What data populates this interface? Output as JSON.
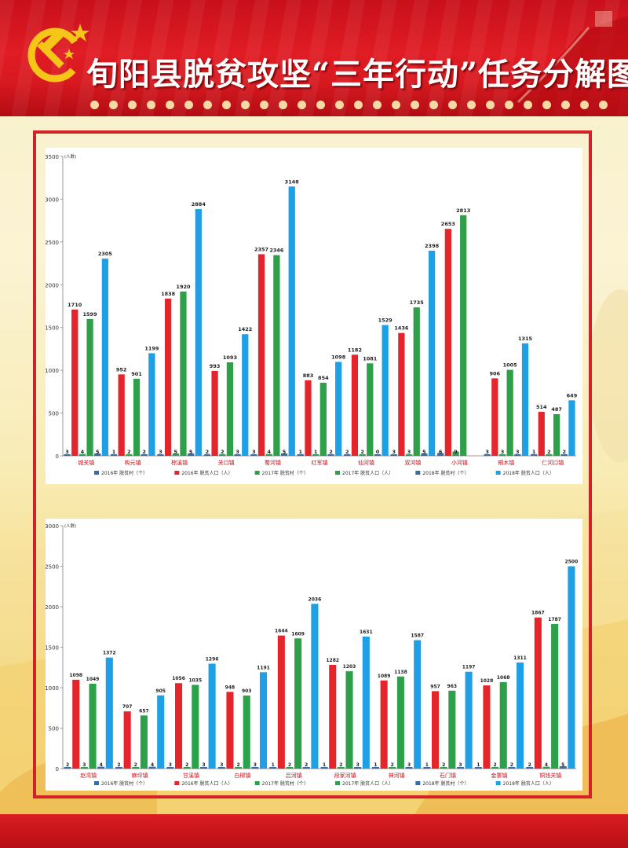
{
  "title": "旬阳县脱贫攻坚“三年行动”任务分解图",
  "colors": {
    "red_dark": "#c8101a",
    "frame": "#d42128",
    "s2016v": "#3a6aa8",
    "s2016p": "#e4262c",
    "s2017v": "#2fa04a",
    "s2017p": "#2fa04a",
    "s2018v": "#3a6aa8",
    "s2018p": "#1ea0e6"
  },
  "chart_data": [
    {
      "type": "bar",
      "ylabel": "(人数)",
      "ylim": [
        0,
        3500
      ],
      "yticks": [
        0,
        500,
        1000,
        1500,
        2000,
        2500,
        3000,
        3500
      ],
      "legend_position": "bottom",
      "categories": [
        "城关镇",
        "构元镇",
        "棕溪镇",
        "关口镇",
        "蜀河镇",
        "红军镇",
        "仙河镇",
        "双河镇",
        "小河镇",
        "桐木镇",
        "仁河口镇"
      ],
      "series": [
        {
          "name": "2016年 脱贫村（个）",
          "color": "#3a6aa8",
          "values": [
            3,
            1,
            3,
            2,
            3,
            1,
            2,
            3,
            6,
            3,
            1
          ]
        },
        {
          "name": "2016年 脱贫人口（人）",
          "color": "#e4262c",
          "values": [
            1710,
            952,
            1838,
            993,
            2357,
            883,
            1182,
            1436,
            2653,
            906,
            514
          ]
        },
        {
          "name": "2017年 脱贫村（个）",
          "color": "#2fa04a",
          "values": [
            4,
            2,
            5,
            2,
            4,
            1,
            2,
            3,
            9,
            3,
            2
          ]
        },
        {
          "name": "2017年 脱贫人口（人）",
          "color": "#2fa04a",
          "values": [
            1599,
            901,
            1920,
            1093,
            2346,
            854,
            1081,
            1735,
            2813,
            1005,
            487
          ]
        },
        {
          "name": "2018年 脱贫村（个）",
          "color": "#3a6aa8",
          "values": [
            5,
            2,
            5,
            3,
            5,
            2,
            0,
            5,
            null,
            3,
            2
          ]
        },
        {
          "name": "2018年 脱贫人口（人）",
          "color": "#1ea0e6",
          "values": [
            2305,
            1199,
            2884,
            1422,
            3148,
            1098,
            1529,
            2398,
            null,
            1315,
            649
          ]
        }
      ]
    },
    {
      "type": "bar",
      "ylabel": "(人数)",
      "ylim": [
        0,
        3000
      ],
      "yticks": [
        0,
        500,
        1000,
        1500,
        2000,
        2500,
        3000
      ],
      "legend_position": "bottom",
      "categories": [
        "赵湾镇",
        "麻坪镇",
        "甘溪镇",
        "白柳镇",
        "吕河镇",
        "段家河镇",
        "神河镇",
        "石门镇",
        "金寨镇",
        "铜钱关镇"
      ],
      "series": [
        {
          "name": "2016年 脱贫村（个）",
          "color": "#3a6aa8",
          "values": [
            2,
            2,
            3,
            3,
            1,
            1,
            1,
            1,
            1,
            2
          ]
        },
        {
          "name": "2016年 脱贫人口（人）",
          "color": "#e4262c",
          "values": [
            1098,
            707,
            1056,
            948,
            1644,
            1282,
            1089,
            957,
            1028,
            1867
          ]
        },
        {
          "name": "2017年 脱贫村（个）",
          "color": "#2fa04a",
          "values": [
            3,
            2,
            2,
            2,
            2,
            2,
            2,
            2,
            2,
            4
          ]
        },
        {
          "name": "2017年 脱贫人口（人）",
          "color": "#2fa04a",
          "values": [
            1049,
            657,
            1035,
            903,
            1609,
            1203,
            1138,
            963,
            1068,
            1787
          ]
        },
        {
          "name": "2018年 脱贫村（个）",
          "color": "#3a6aa8",
          "values": [
            4,
            4,
            3,
            3,
            2,
            3,
            3,
            3,
            2,
            5
          ]
        },
        {
          "name": "2018年 脱贫人口（人）",
          "color": "#1ea0e6",
          "values": [
            1372,
            905,
            1296,
            1191,
            2036,
            1631,
            1587,
            1197,
            1311,
            2500
          ]
        }
      ]
    }
  ]
}
